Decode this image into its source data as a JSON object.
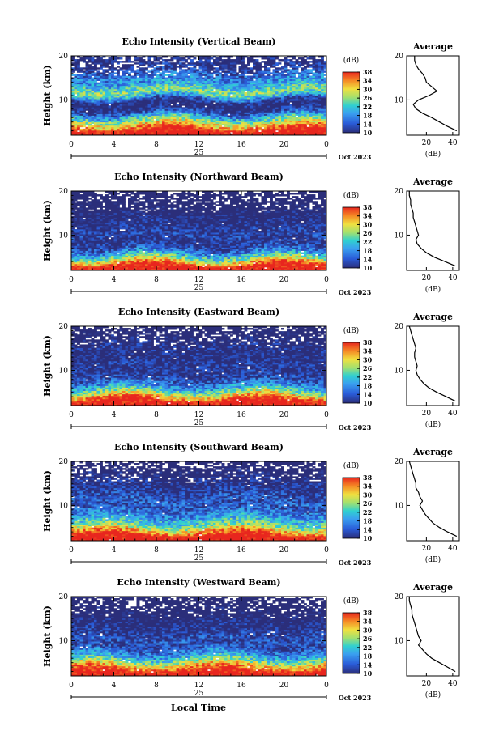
{
  "figure": {
    "xlabel": "Local Time",
    "day_label": "25",
    "month_label": "Oct 2023",
    "ylabel": "Height (km)",
    "avg_title": "Average",
    "avg_xlabel": "(dB)",
    "cbar_label": "(dB)"
  },
  "chart_data": [
    {
      "type": "heatmap",
      "title": "Echo Intensity (Vertical Beam)",
      "xlim": [
        0,
        24
      ],
      "ylim": [
        2,
        20
      ],
      "x_ticks": [
        "0",
        "4",
        "8",
        "12",
        "16",
        "20",
        "0"
      ],
      "y_ticks": [
        "10",
        "20"
      ],
      "colorbar": {
        "ticks": [
          "10",
          "14",
          "18",
          "22",
          "26",
          "30",
          "34",
          "38"
        ],
        "range": [
          10,
          38
        ]
      },
      "average_profile": {
        "xlim": [
          5,
          45
        ],
        "x_ticks": [
          "20",
          "40"
        ],
        "y_ticks": [
          "10",
          "20"
        ],
        "height_km": [
          3,
          4,
          5,
          6,
          7,
          8,
          9,
          10,
          11,
          12,
          13,
          14,
          15,
          16,
          17,
          18,
          19,
          20
        ],
        "mean_db": [
          43,
          36,
          30,
          24,
          17,
          12,
          10,
          14,
          22,
          28,
          24,
          20,
          19,
          17,
          14,
          12,
          11,
          11
        ]
      }
    },
    {
      "type": "heatmap",
      "title": "Echo Intensity (Northward Beam)",
      "xlim": [
        0,
        24
      ],
      "ylim": [
        2,
        20
      ],
      "x_ticks": [
        "0",
        "4",
        "8",
        "12",
        "16",
        "20",
        "0"
      ],
      "y_ticks": [
        "10",
        "20"
      ],
      "colorbar": {
        "ticks": [
          "10",
          "14",
          "18",
          "22",
          "26",
          "30",
          "34",
          "38"
        ],
        "range": [
          10,
          38
        ]
      },
      "average_profile": {
        "xlim": [
          5,
          45
        ],
        "x_ticks": [
          "20",
          "40"
        ],
        "y_ticks": [
          "10",
          "20"
        ],
        "height_km": [
          3,
          4,
          5,
          6,
          7,
          8,
          9,
          10,
          11,
          12,
          13,
          14,
          15,
          16,
          17,
          18,
          19,
          20
        ],
        "mean_db": [
          42,
          34,
          26,
          20,
          16,
          13,
          12,
          14,
          13,
          12,
          11,
          10,
          10,
          9,
          8,
          8,
          7,
          7
        ]
      }
    },
    {
      "type": "heatmap",
      "title": "Echo Intensity (Eastward Beam)",
      "xlim": [
        0,
        24
      ],
      "ylim": [
        2,
        20
      ],
      "x_ticks": [
        "0",
        "4",
        "8",
        "12",
        "16",
        "20",
        "0"
      ],
      "y_ticks": [
        "10",
        "20"
      ],
      "colorbar": {
        "ticks": [
          "10",
          "14",
          "18",
          "22",
          "26",
          "30",
          "34",
          "38"
        ],
        "range": [
          10,
          38
        ]
      },
      "average_profile": {
        "xlim": [
          5,
          45
        ],
        "x_ticks": [
          "20",
          "40"
        ],
        "y_ticks": [
          "10",
          "20"
        ],
        "height_km": [
          3,
          4,
          5,
          6,
          7,
          8,
          9,
          10,
          11,
          12,
          13,
          14,
          15,
          16,
          17,
          18,
          19,
          20
        ],
        "mean_db": [
          42,
          35,
          28,
          22,
          18,
          15,
          13,
          12,
          13,
          12,
          11,
          11,
          12,
          11,
          10,
          9,
          8,
          7
        ]
      }
    },
    {
      "type": "heatmap",
      "title": "Echo Intensity (Southward Beam)",
      "xlim": [
        0,
        24
      ],
      "ylim": [
        2,
        20
      ],
      "x_ticks": [
        "0",
        "4",
        "8",
        "12",
        "16",
        "20",
        "0"
      ],
      "y_ticks": [
        "10",
        "20"
      ],
      "colorbar": {
        "ticks": [
          "10",
          "14",
          "18",
          "22",
          "26",
          "30",
          "34",
          "38"
        ],
        "range": [
          10,
          38
        ]
      },
      "average_profile": {
        "xlim": [
          5,
          45
        ],
        "x_ticks": [
          "20",
          "40"
        ],
        "y_ticks": [
          "10",
          "20"
        ],
        "height_km": [
          3,
          4,
          5,
          6,
          7,
          8,
          9,
          10,
          11,
          12,
          13,
          14,
          15,
          16,
          17,
          18,
          19,
          20
        ],
        "mean_db": [
          43,
          36,
          30,
          25,
          22,
          19,
          17,
          15,
          17,
          15,
          14,
          12,
          12,
          11,
          10,
          9,
          8,
          7
        ]
      }
    },
    {
      "type": "heatmap",
      "title": "Echo Intensity (Westward Beam)",
      "xlim": [
        0,
        24
      ],
      "ylim": [
        2,
        20
      ],
      "x_ticks": [
        "0",
        "4",
        "8",
        "12",
        "16",
        "20",
        "0"
      ],
      "y_ticks": [
        "10",
        "20"
      ],
      "colorbar": {
        "ticks": [
          "10",
          "14",
          "18",
          "22",
          "26",
          "30",
          "34",
          "38"
        ],
        "range": [
          10,
          38
        ]
      },
      "average_profile": {
        "xlim": [
          5,
          45
        ],
        "x_ticks": [
          "20",
          "40"
        ],
        "y_ticks": [
          "10",
          "20"
        ],
        "height_km": [
          3,
          4,
          5,
          6,
          7,
          8,
          9,
          10,
          11,
          12,
          13,
          14,
          15,
          16,
          17,
          18,
          19,
          20
        ],
        "mean_db": [
          42,
          36,
          30,
          24,
          20,
          17,
          14,
          16,
          14,
          13,
          12,
          11,
          10,
          9,
          9,
          8,
          7,
          7
        ]
      }
    }
  ]
}
